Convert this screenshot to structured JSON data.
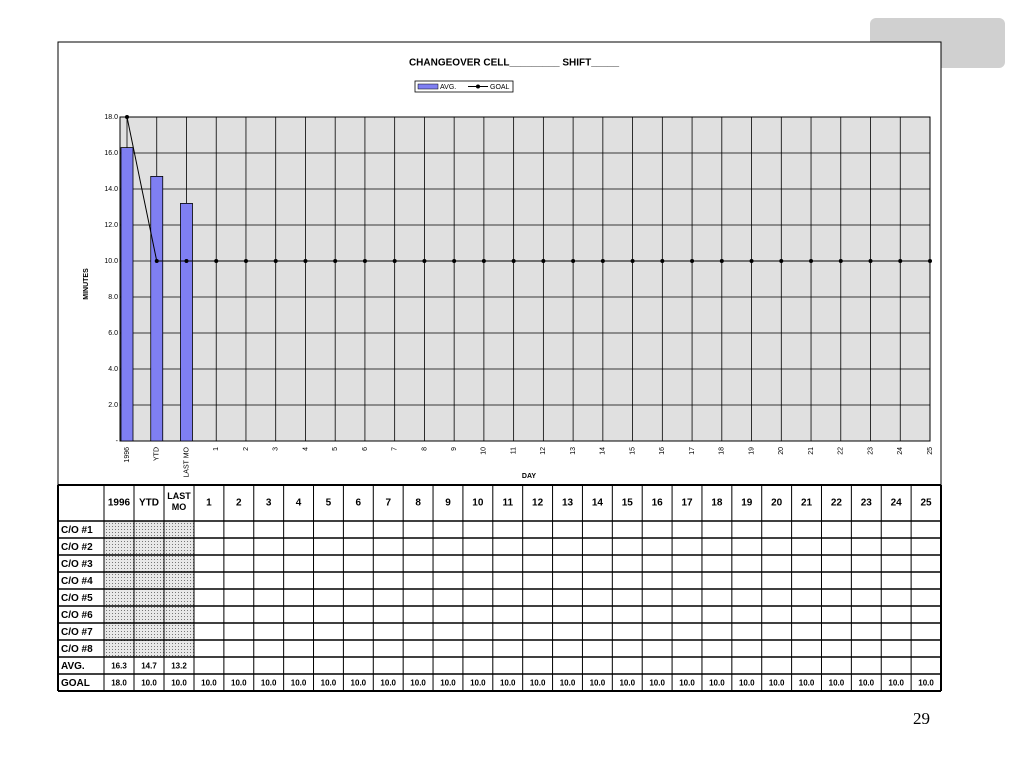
{
  "chart_data": {
    "type": "combo",
    "title": "CHANGEOVER  CELL_________   SHIFT_____",
    "x_label": "DAY",
    "y_label": "MINUTES",
    "categories": [
      "1996",
      "YTD",
      "LAST MO",
      "1",
      "2",
      "3",
      "4",
      "5",
      "6",
      "7",
      "8",
      "9",
      "10",
      "11",
      "12",
      "13",
      "14",
      "15",
      "16",
      "17",
      "18",
      "19",
      "20",
      "21",
      "22",
      "23",
      "24",
      "25"
    ],
    "series": [
      {
        "name": "AVG.",
        "type": "bar",
        "color": "#7f7ff2",
        "values": [
          16.3,
          14.7,
          13.2,
          null,
          null,
          null,
          null,
          null,
          null,
          null,
          null,
          null,
          null,
          null,
          null,
          null,
          null,
          null,
          null,
          null,
          null,
          null,
          null,
          null,
          null,
          null,
          null,
          null
        ]
      },
      {
        "name": "GOAL",
        "type": "line",
        "color": "#000000",
        "values": [
          18.0,
          10.0,
          10.0,
          10.0,
          10.0,
          10.0,
          10.0,
          10.0,
          10.0,
          10.0,
          10.0,
          10.0,
          10.0,
          10.0,
          10.0,
          10.0,
          10.0,
          10.0,
          10.0,
          10.0,
          10.0,
          10.0,
          10.0,
          10.0,
          10.0,
          10.0,
          10.0,
          10.0
        ]
      }
    ],
    "ylim": [
      0,
      18
    ],
    "yticks": [
      {
        "value": 0,
        "label": "-"
      },
      {
        "value": 2,
        "label": "2.0"
      },
      {
        "value": 4,
        "label": "4.0"
      },
      {
        "value": 6,
        "label": "6.0"
      },
      {
        "value": 8,
        "label": "8.0"
      },
      {
        "value": 10,
        "label": "10.0"
      },
      {
        "value": 12,
        "label": "12.0"
      },
      {
        "value": 14,
        "label": "14.0"
      },
      {
        "value": 16,
        "label": "16.0"
      },
      {
        "value": 18,
        "label": "18.0"
      }
    ],
    "grid": true,
    "plot_background": "#e0e0e0",
    "legend": "top"
  },
  "table": {
    "columns": [
      "1996",
      "YTD",
      "LAST MO",
      "1",
      "2",
      "3",
      "4",
      "5",
      "6",
      "7",
      "8",
      "9",
      "10",
      "11",
      "12",
      "13",
      "14",
      "15",
      "16",
      "17",
      "18",
      "19",
      "20",
      "21",
      "22",
      "23",
      "24",
      "25"
    ],
    "row_labels": [
      "C/O  #1",
      "C/O  #2",
      "C/O  #3",
      "C/O  #4",
      "C/O  #5",
      "C/O  #6",
      "C/O  #7",
      "C/O  #8"
    ],
    "avg_row": {
      "label": "AVG.",
      "values": [
        "16.3",
        "14.7",
        "13.2"
      ]
    },
    "goal_row": {
      "label": "GOAL",
      "values": [
        "18.0",
        "10.0",
        "10.0",
        "10.0",
        "10.0",
        "10.0",
        "10.0",
        "10.0",
        "10.0",
        "10.0",
        "10.0",
        "10.0",
        "10.0",
        "10.0",
        "10.0",
        "10.0",
        "10.0",
        "10.0",
        "10.0",
        "10.0",
        "10.0",
        "10.0",
        "10.0",
        "10.0",
        "10.0",
        "10.0",
        "10.0",
        "10.0"
      ]
    }
  },
  "page_number": "29"
}
